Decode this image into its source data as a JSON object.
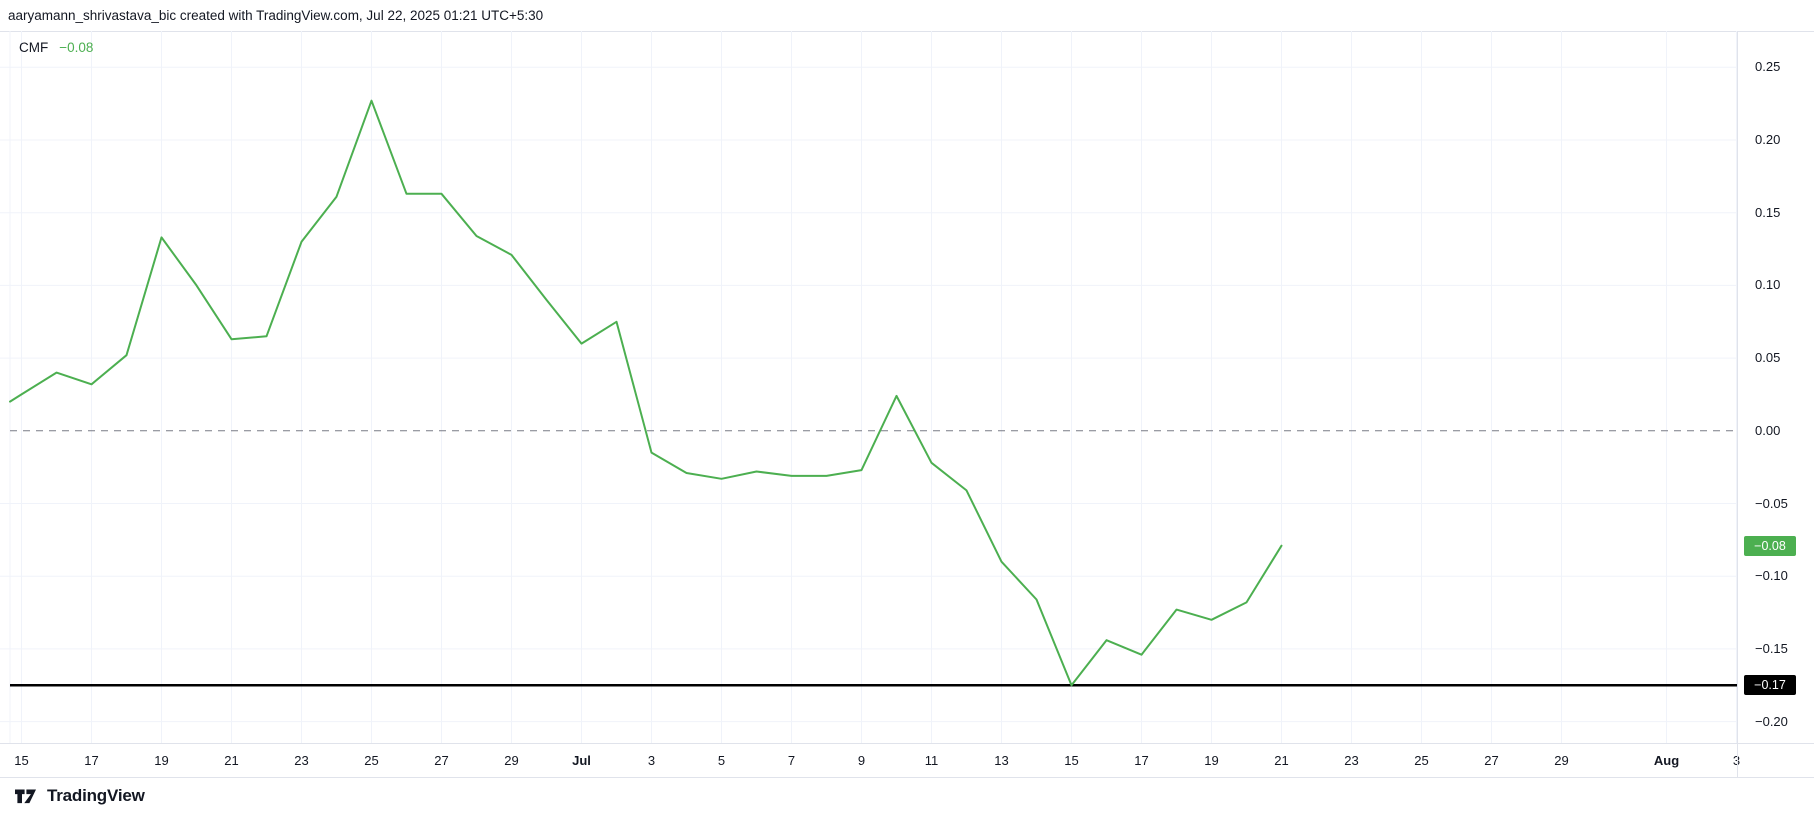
{
  "header": {
    "title": "aaryamann_shrivastava_bic created with TradingView.com, Jul 22, 2025 01:21 UTC+5:30"
  },
  "legend": {
    "indicator": "CMF",
    "value": "−0.08",
    "value_color": "#4caf50"
  },
  "price_axis": {
    "last_value_badge": {
      "label": "−0.08",
      "value": -0.079,
      "bg": "#4caf50"
    },
    "level_badge": {
      "label": "−0.17",
      "value": -0.175,
      "bg": "#000000"
    }
  },
  "footer": {
    "brand": "TradingView"
  },
  "colors": {
    "line": "#4caf50",
    "grid": "#f0f3fa",
    "border": "#e0e3eb",
    "zero_line": "#787b86",
    "level_line": "#000000",
    "text": "#131722"
  },
  "chart_data": {
    "type": "line",
    "title": "CMF",
    "ylim": [
      -0.215,
      0.275
    ],
    "grid": true,
    "legend_position": "top-left",
    "zero_line": {
      "value": 0,
      "style": "dashed"
    },
    "level_line": {
      "value": -0.175,
      "label": "−0.17"
    },
    "y_ticks": [
      {
        "label": "0.25",
        "value": 0.25
      },
      {
        "label": "0.20",
        "value": 0.2
      },
      {
        "label": "0.15",
        "value": 0.15
      },
      {
        "label": "0.10",
        "value": 0.1
      },
      {
        "label": "0.05",
        "value": 0.05
      },
      {
        "label": "0.00",
        "value": 0.0
      },
      {
        "label": "−0.05",
        "value": -0.05
      },
      {
        "label": "−0.10",
        "value": -0.1
      },
      {
        "label": "−0.15",
        "value": -0.15
      },
      {
        "label": "−0.20",
        "value": -0.2
      }
    ],
    "x_ticks": [
      {
        "label": "15",
        "day": 0
      },
      {
        "label": "17",
        "day": 2
      },
      {
        "label": "19",
        "day": 4
      },
      {
        "label": "21",
        "day": 6
      },
      {
        "label": "23",
        "day": 8
      },
      {
        "label": "25",
        "day": 10
      },
      {
        "label": "27",
        "day": 12
      },
      {
        "label": "29",
        "day": 14
      },
      {
        "label": "Jul",
        "day": 16,
        "bold": true
      },
      {
        "label": "3",
        "day": 18
      },
      {
        "label": "5",
        "day": 20
      },
      {
        "label": "7",
        "day": 22
      },
      {
        "label": "9",
        "day": 24
      },
      {
        "label": "11",
        "day": 26
      },
      {
        "label": "13",
        "day": 28
      },
      {
        "label": "15",
        "day": 30
      },
      {
        "label": "17",
        "day": 32
      },
      {
        "label": "19",
        "day": 34
      },
      {
        "label": "21",
        "day": 36
      },
      {
        "label": "23",
        "day": 38
      },
      {
        "label": "25",
        "day": 40
      },
      {
        "label": "27",
        "day": 42
      },
      {
        "label": "29",
        "day": 44
      },
      {
        "label": "Aug",
        "day": 47,
        "bold": true
      },
      {
        "label": "3",
        "day": 49
      }
    ],
    "series": [
      {
        "name": "CMF",
        "color": "#4caf50",
        "dates": [
          "Jun 15",
          "Jun 16",
          "Jun 17",
          "Jun 18",
          "Jun 19",
          "Jun 20",
          "Jun 21",
          "Jun 22",
          "Jun 23",
          "Jun 24",
          "Jun 25",
          "Jun 26",
          "Jun 27",
          "Jun 28",
          "Jun 29",
          "Jun 30",
          "Jul 1",
          "Jul 2",
          "Jul 3",
          "Jul 4",
          "Jul 5",
          "Jul 6",
          "Jul 7",
          "Jul 8",
          "Jul 9",
          "Jul 10",
          "Jul 11",
          "Jul 12",
          "Jul 13",
          "Jul 14",
          "Jul 15",
          "Jul 16",
          "Jul 17",
          "Jul 18",
          "Jul 19",
          "Jul 20",
          "Jul 21"
        ],
        "values": [
          0.025,
          0.04,
          0.032,
          0.052,
          0.133,
          0.1,
          0.063,
          0.065,
          0.13,
          0.161,
          0.227,
          0.163,
          0.163,
          0.134,
          0.121,
          0.09,
          0.06,
          0.075,
          -0.015,
          -0.029,
          -0.033,
          -0.028,
          -0.031,
          -0.031,
          -0.027,
          0.024,
          -0.022,
          -0.041,
          -0.09,
          -0.116,
          -0.175,
          -0.144,
          -0.154,
          -0.123,
          -0.13,
          -0.118,
          -0.079
        ]
      }
    ]
  }
}
